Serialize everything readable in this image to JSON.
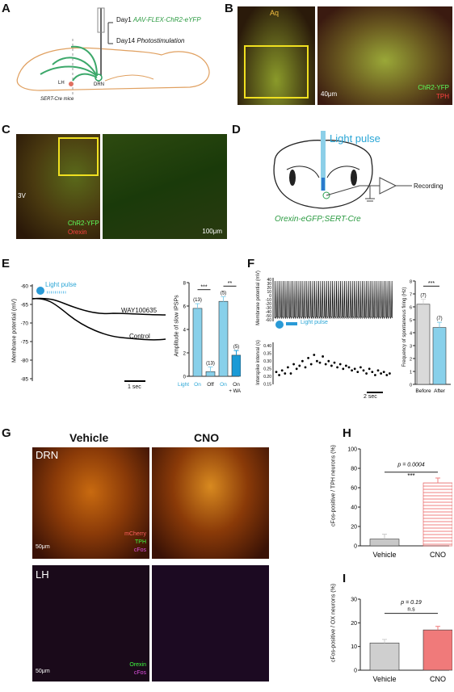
{
  "panels": {
    "A": {
      "label": "A",
      "day1": "Day1",
      "day1_virus": "AAV-FLEX-ChR2-eYFP",
      "day14": "Day14",
      "day14_text": "Photostimulation",
      "lh": "LH",
      "drn": "DRN",
      "mouse": "SERT-Cre mice"
    },
    "B": {
      "label": "B",
      "aq": "Aq",
      "chr2": "ChR2-YFP",
      "tph": "TPH",
      "scale": "40μm"
    },
    "C": {
      "label": "C",
      "v3": "3V",
      "chr2": "ChR2-YFP",
      "orexin": "Orexin",
      "scale": "100μm"
    },
    "D": {
      "label": "D",
      "light": "Light pulse",
      "recording": "Recording",
      "genotype": "Orexin-eGFP;SERT-Cre"
    },
    "E": {
      "label": "E",
      "ylabel": "Membrane potential (mV)",
      "yticks": [
        "-60",
        "-65",
        "-70",
        "-75",
        "-80",
        "-85"
      ],
      "light": "Light pulse",
      "trace1": "WAY100635",
      "trace2": "Control",
      "scale": "1 sec"
    },
    "E_bar": {
      "ylabel": "Amplitude of slow IPSPs",
      "yticks": [
        "8",
        "6",
        "4",
        "2",
        "0"
      ],
      "sig1": "***",
      "sig2": "**",
      "xlabels": [
        "Light",
        "On",
        "Off",
        "On",
        "On + WAY"
      ]
    },
    "F": {
      "label": "F",
      "ylabel_top": "Membrane potential (mV)",
      "yticks_top": [
        "40",
        "30",
        "20",
        "10",
        "0",
        "-10",
        "-20",
        "-30",
        "-40",
        "-50",
        "-60"
      ],
      "ylabel_bot": "Interspike interval (s)",
      "yticks_bot": [
        "0.40",
        "0.35",
        "0.30",
        "0.25",
        "0.20",
        "0.15"
      ],
      "light": "Light pulse",
      "scale": "2 sec"
    },
    "F_bar": {
      "ylabel": "Frequency of spontaneous firing (Hz)",
      "yticks": [
        "8",
        "7",
        "6",
        "5",
        "4",
        "3",
        "2",
        "1",
        "0"
      ],
      "sig": "***",
      "xlabels": [
        "Before",
        "After"
      ]
    },
    "G": {
      "label": "G",
      "col1": "Vehicle",
      "col2": "CNO",
      "row1": "DRN",
      "row2": "LH",
      "m1": "mCherry",
      "m2": "TPH",
      "m3": "cFos",
      "o1": "Orexin",
      "o2": "cFos",
      "scale1": "50μm",
      "scale2": "50μm"
    },
    "H": {
      "label": "H",
      "ylabel": "cFos-positive / TPH neurons (%)",
      "yticks": [
        "100",
        "80",
        "60",
        "40",
        "20",
        "0"
      ],
      "p": "p = 0.0004",
      "sig": "***",
      "xlabels": [
        "Vehicle",
        "CNO"
      ]
    },
    "I": {
      "label": "I",
      "ylabel": "cFos-positive / OX neurons (%)",
      "yticks": [
        "30",
        "20",
        "10",
        "0"
      ],
      "p": "p = 0.19",
      "sig": "n.s",
      "xlabels": [
        "Vehicle",
        "CNO"
      ]
    }
  },
  "chart_data": [
    {
      "type": "bar",
      "title": "",
      "ylabel": "Amplitude of slow IPSPs",
      "ylim": [
        0,
        8
      ],
      "categories": [
        "On",
        "Off",
        "On",
        "On + WAY"
      ],
      "values": [
        5.8,
        0.4,
        6.4,
        1.8
      ],
      "n": [
        "(13)",
        "(13)",
        "(5)",
        "(5)"
      ],
      "colors": [
        "#88d0ea",
        "#88d0ea",
        "#88d0ea",
        "#1a9ad6"
      ]
    },
    {
      "type": "bar",
      "title": "",
      "ylabel": "Frequency of spontaneous firing (Hz)",
      "ylim": [
        0,
        8
      ],
      "categories": [
        "Before",
        "After"
      ],
      "values": [
        6.2,
        4.4
      ],
      "n": [
        "(7)",
        "(7)"
      ],
      "colors": [
        "#d9d9d9",
        "#88d0ea"
      ]
    },
    {
      "type": "bar",
      "title": "",
      "ylabel": "cFos-positive / TPH neurons (%)",
      "ylim": [
        0,
        100
      ],
      "categories": [
        "Vehicle",
        "CNO"
      ],
      "values": [
        7,
        65
      ],
      "colors": [
        "#c8c8c8",
        "#f08080"
      ]
    },
    {
      "type": "bar",
      "title": "",
      "ylabel": "cFos-positive / OX neurons (%)",
      "ylim": [
        0,
        30
      ],
      "categories": [
        "Vehicle",
        "CNO"
      ],
      "values": [
        11.5,
        17
      ],
      "colors": [
        "#cfcfcf",
        "#f07a7a"
      ]
    }
  ]
}
